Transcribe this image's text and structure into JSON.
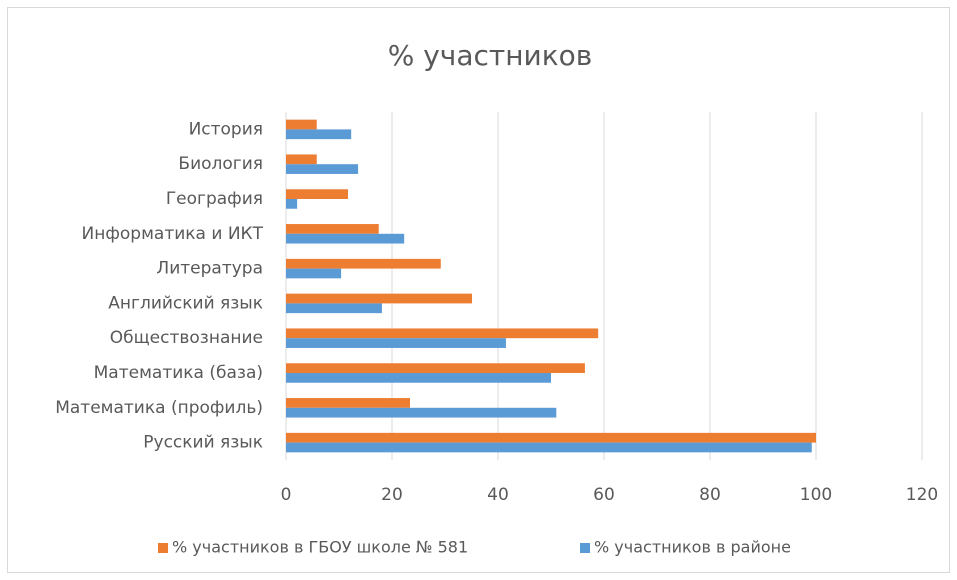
{
  "chart_data": {
    "type": "bar",
    "orientation": "horizontal",
    "title": "% участников",
    "categories": [
      "Русский язык",
      "Математика (профиль)",
      "Математика (база)",
      "Обществознание",
      "Английский язык",
      "Литература ",
      "Информатика и ИКТ",
      "География",
      "Биология",
      "История"
    ],
    "series": [
      {
        "name": "% участников в ГБОУ школе № 581",
        "color": "#ed7d31",
        "values": [
          100,
          23.4,
          56.4,
          58.9,
          35.1,
          29.2,
          17.5,
          11.7,
          5.8,
          5.8
        ]
      },
      {
        "name": "% участников в районе",
        "color": "#5b9bd5",
        "values": [
          99.2,
          51,
          50,
          41.5,
          18.1,
          10.4,
          22.3,
          2.1,
          13.6,
          12.3
        ]
      }
    ],
    "xlim": [
      0,
      120
    ],
    "xticks": [
      0,
      20,
      40,
      60,
      80,
      100,
      120
    ],
    "grid": true,
    "legend": "bottom"
  }
}
